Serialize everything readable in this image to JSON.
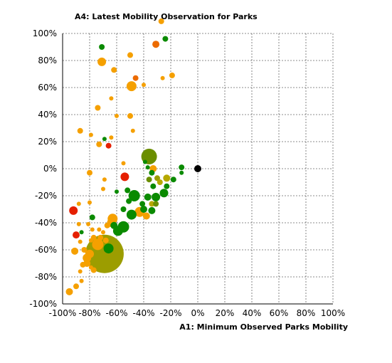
{
  "chart_data": {
    "type": "scatter",
    "title": "A4: Latest Mobility Observation for Parks",
    "xlabel": "A1: Minimum Observed Parks Mobility",
    "ylabel": "",
    "xlim": [
      -100,
      100
    ],
    "ylim": [
      -100,
      100
    ],
    "x_ticks": [
      "-100%",
      "-80%",
      "-60%",
      "-40%",
      "-20%",
      "0%",
      "20%",
      "40%",
      "60%",
      "80%",
      "100%"
    ],
    "y_ticks": [
      "100%",
      "80%",
      "60%",
      "40%",
      "20%",
      "0%",
      "-20%",
      "-40%",
      "-60%",
      "-80%",
      "-100%"
    ],
    "grid": true,
    "legend": "none",
    "colors": {
      "orange": "#f5a000",
      "dark_orange": "#ec6b00",
      "red": "#e51f00",
      "olive": "#6b8e00",
      "green": "#0a8a00",
      "dark_green": "#0a7a00",
      "yellowish": "#b5a800",
      "gold": "#9c9d00",
      "black": "#000000"
    },
    "points": [
      {
        "x": -27,
        "y": 109,
        "s": 4,
        "c": "orange"
      },
      {
        "x": -24,
        "y": 96,
        "s": 4,
        "c": "green"
      },
      {
        "x": -31,
        "y": 92,
        "s": 5,
        "c": "dark_orange"
      },
      {
        "x": -71,
        "y": 90,
        "s": 4,
        "c": "green"
      },
      {
        "x": -50,
        "y": 84,
        "s": 4,
        "c": "orange"
      },
      {
        "x": -71,
        "y": 79,
        "s": 6,
        "c": "orange"
      },
      {
        "x": -62,
        "y": 73,
        "s": 4,
        "c": "orange"
      },
      {
        "x": -19,
        "y": 69,
        "s": 4,
        "c": "orange"
      },
      {
        "x": -46,
        "y": 67,
        "s": 4,
        "c": "dark_orange"
      },
      {
        "x": -26,
        "y": 67,
        "s": 3,
        "c": "orange"
      },
      {
        "x": -49,
        "y": 61,
        "s": 7,
        "c": "orange"
      },
      {
        "x": -40,
        "y": 62,
        "s": 3,
        "c": "orange"
      },
      {
        "x": -64,
        "y": 52,
        "s": 3,
        "c": "orange"
      },
      {
        "x": -74,
        "y": 45,
        "s": 4,
        "c": "orange"
      },
      {
        "x": -60,
        "y": 39,
        "s": 3,
        "c": "orange"
      },
      {
        "x": -50,
        "y": 39,
        "s": 4,
        "c": "orange"
      },
      {
        "x": -87,
        "y": 28,
        "s": 4,
        "c": "orange"
      },
      {
        "x": -48,
        "y": 28,
        "s": 3,
        "c": "orange"
      },
      {
        "x": -79,
        "y": 25,
        "s": 3,
        "c": "orange"
      },
      {
        "x": -69,
        "y": 22,
        "s": 3,
        "c": "green"
      },
      {
        "x": -64,
        "y": 23,
        "s": 3,
        "c": "orange"
      },
      {
        "x": -73,
        "y": 18,
        "s": 4,
        "c": "orange"
      },
      {
        "x": -66,
        "y": 17,
        "s": 4,
        "c": "red"
      },
      {
        "x": -36,
        "y": 9,
        "s": 11,
        "c": "olive"
      },
      {
        "x": -55,
        "y": 4,
        "s": 3,
        "c": "orange"
      },
      {
        "x": -39,
        "y": 5,
        "s": 3,
        "c": "green"
      },
      {
        "x": -37,
        "y": 1,
        "s": 3,
        "c": "green"
      },
      {
        "x": -33,
        "y": 0,
        "s": 5,
        "c": "orange"
      },
      {
        "x": -12,
        "y": 1,
        "s": 4,
        "c": "green"
      },
      {
        "x": -12,
        "y": -3,
        "s": 3,
        "c": "green"
      },
      {
        "x": 0,
        "y": 0,
        "s": 5,
        "c": "black"
      },
      {
        "x": -80,
        "y": -3,
        "s": 4,
        "c": "orange"
      },
      {
        "x": -54,
        "y": -6,
        "s": 6,
        "c": "red"
      },
      {
        "x": -34,
        "y": -3,
        "s": 4,
        "c": "green"
      },
      {
        "x": -30,
        "y": -7,
        "s": 4,
        "c": "gold"
      },
      {
        "x": -23,
        "y": -7,
        "s": 5,
        "c": "yellowish"
      },
      {
        "x": -18,
        "y": -8,
        "s": 4,
        "c": "green"
      },
      {
        "x": -36,
        "y": -8,
        "s": 4,
        "c": "olive"
      },
      {
        "x": -28,
        "y": -10,
        "s": 4,
        "c": "yellowish"
      },
      {
        "x": -33,
        "y": -13,
        "s": 4,
        "c": "green"
      },
      {
        "x": -23,
        "y": -13,
        "s": 4,
        "c": "green"
      },
      {
        "x": -69,
        "y": -8,
        "s": 3,
        "c": "orange"
      },
      {
        "x": -70,
        "y": -15,
        "s": 3,
        "c": "orange"
      },
      {
        "x": -60,
        "y": -17,
        "s": 3,
        "c": "green"
      },
      {
        "x": -52,
        "y": -16,
        "s": 4,
        "c": "green"
      },
      {
        "x": -47,
        "y": -20,
        "s": 8,
        "c": "green"
      },
      {
        "x": -25,
        "y": -18,
        "s": 6,
        "c": "green"
      },
      {
        "x": -37,
        "y": -21,
        "s": 5,
        "c": "green"
      },
      {
        "x": -31,
        "y": -21,
        "s": 6,
        "c": "green"
      },
      {
        "x": -51,
        "y": -24,
        "s": 4,
        "c": "green"
      },
      {
        "x": -41,
        "y": -26,
        "s": 4,
        "c": "green"
      },
      {
        "x": -34,
        "y": -26,
        "s": 4,
        "c": "yellowish"
      },
      {
        "x": -31,
        "y": -26,
        "s": 4,
        "c": "olive"
      },
      {
        "x": -88,
        "y": -26,
        "s": 3,
        "c": "orange"
      },
      {
        "x": -80,
        "y": -25,
        "s": 3,
        "c": "orange"
      },
      {
        "x": -92,
        "y": -31,
        "s": 6,
        "c": "red"
      },
      {
        "x": -55,
        "y": -30,
        "s": 4,
        "c": "green"
      },
      {
        "x": -40,
        "y": -30,
        "s": 5,
        "c": "green"
      },
      {
        "x": -43,
        "y": -32,
        "s": 7,
        "c": "orange"
      },
      {
        "x": -49,
        "y": -34,
        "s": 7,
        "c": "green"
      },
      {
        "x": -34,
        "y": -31,
        "s": 5,
        "c": "green"
      },
      {
        "x": -38,
        "y": -35,
        "s": 5,
        "c": "orange"
      },
      {
        "x": -78,
        "y": -36,
        "s": 4,
        "c": "green"
      },
      {
        "x": -63,
        "y": -37,
        "s": 7,
        "c": "orange"
      },
      {
        "x": -64,
        "y": -40,
        "s": 6,
        "c": "orange"
      },
      {
        "x": -62,
        "y": -42,
        "s": 5,
        "c": "green"
      },
      {
        "x": -55,
        "y": -43,
        "s": 8,
        "c": "green"
      },
      {
        "x": -67,
        "y": -42,
        "s": 4,
        "c": "orange"
      },
      {
        "x": -81,
        "y": -41,
        "s": 3,
        "c": "orange"
      },
      {
        "x": -88,
        "y": -41,
        "s": 3,
        "c": "orange"
      },
      {
        "x": -78,
        "y": -45,
        "s": 3,
        "c": "orange"
      },
      {
        "x": -73,
        "y": -45,
        "s": 3,
        "c": "orange"
      },
      {
        "x": -59,
        "y": -46,
        "s": 7,
        "c": "green"
      },
      {
        "x": -70,
        "y": -47,
        "s": 3,
        "c": "orange"
      },
      {
        "x": -86,
        "y": -47,
        "s": 3,
        "c": "green"
      },
      {
        "x": -90,
        "y": -49,
        "s": 5,
        "c": "red"
      },
      {
        "x": -77,
        "y": -51,
        "s": 4,
        "c": "orange"
      },
      {
        "x": -72,
        "y": -51,
        "s": 4,
        "c": "orange"
      },
      {
        "x": -68,
        "y": -53,
        "s": 4,
        "c": "orange"
      },
      {
        "x": -79,
        "y": -53,
        "s": 3,
        "c": "orange"
      },
      {
        "x": -87,
        "y": -54,
        "s": 3,
        "c": "orange"
      },
      {
        "x": -74,
        "y": -56,
        "s": 8,
        "c": "orange"
      },
      {
        "x": -69,
        "y": -63,
        "s": 27,
        "c": "gold"
      },
      {
        "x": -66,
        "y": -59,
        "s": 7,
        "c": "green"
      },
      {
        "x": -91,
        "y": -61,
        "s": 5,
        "c": "orange"
      },
      {
        "x": -84,
        "y": -60,
        "s": 4,
        "c": "orange"
      },
      {
        "x": -82,
        "y": -66,
        "s": 6,
        "c": "orange"
      },
      {
        "x": -80,
        "y": -63,
        "s": 6,
        "c": "orange"
      },
      {
        "x": -85,
        "y": -71,
        "s": 4,
        "c": "orange"
      },
      {
        "x": -82,
        "y": -70,
        "s": 5,
        "c": "orange"
      },
      {
        "x": -79,
        "y": -73,
        "s": 3,
        "c": "orange"
      },
      {
        "x": -77,
        "y": -75,
        "s": 4,
        "c": "orange"
      },
      {
        "x": -87,
        "y": -76,
        "s": 3,
        "c": "orange"
      },
      {
        "x": -86,
        "y": -83,
        "s": 3,
        "c": "orange"
      },
      {
        "x": -90,
        "y": -87,
        "s": 4,
        "c": "orange"
      },
      {
        "x": -95,
        "y": -91,
        "s": 5,
        "c": "orange"
      }
    ]
  }
}
